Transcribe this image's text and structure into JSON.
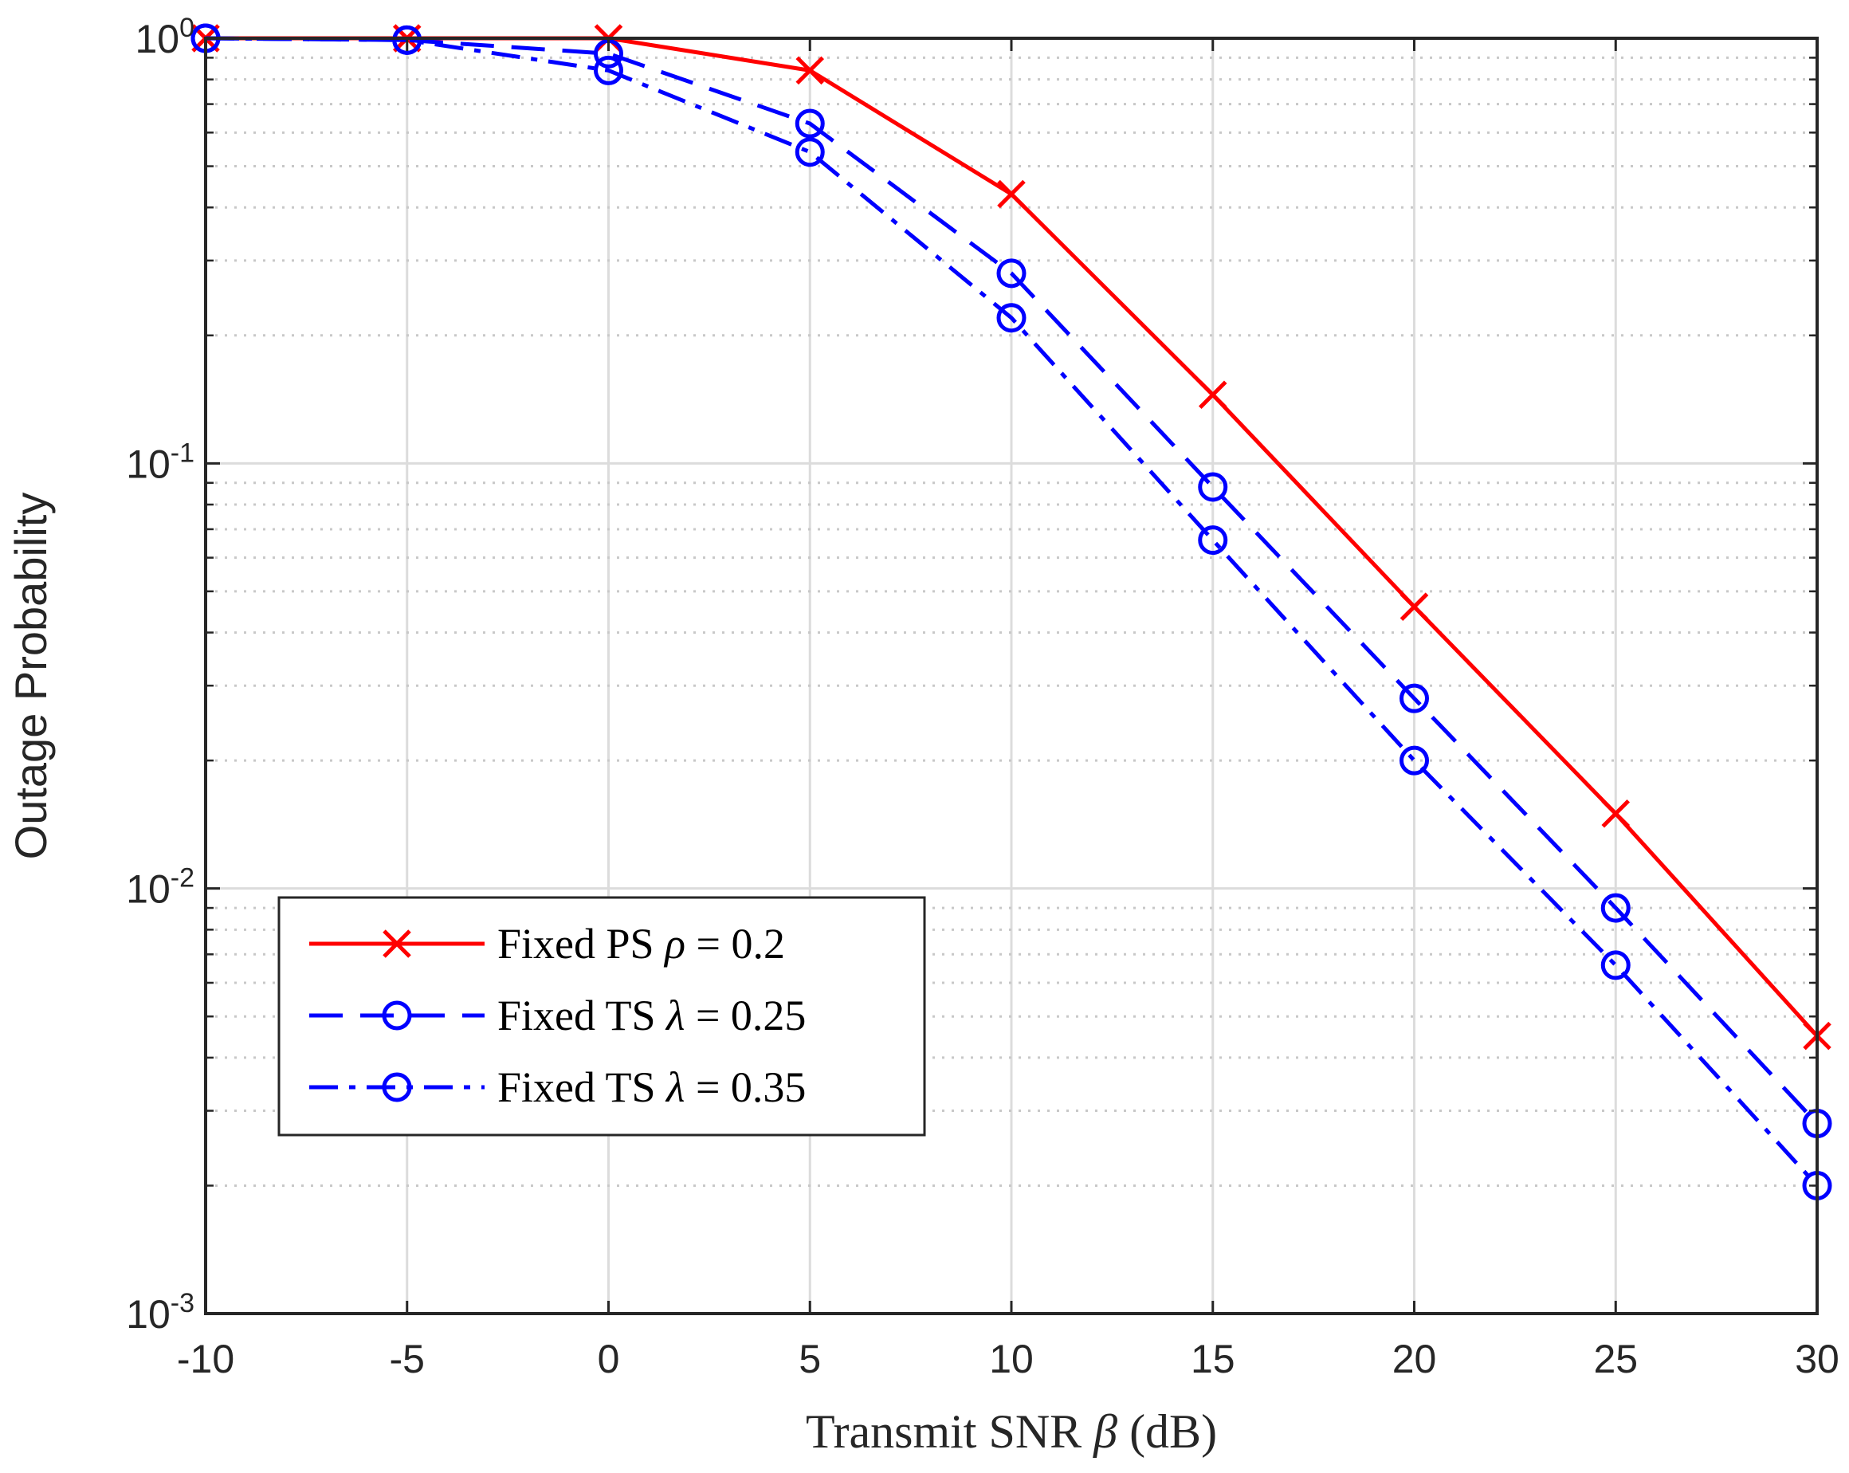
{
  "chart_data": {
    "type": "line",
    "xlabel": {
      "prefix": "Transmit SNR ",
      "symbol": "β",
      "suffix": " (dB)"
    },
    "ylabel": "Outage Probability",
    "x_ticks": [
      "-10",
      "-5",
      "0",
      "5",
      "10",
      "15",
      "20",
      "25",
      "30"
    ],
    "y_ticks": [
      {
        "base": "10",
        "exp": "-3"
      },
      {
        "base": "10",
        "exp": "-2"
      },
      {
        "base": "10",
        "exp": "-1"
      },
      {
        "base": "10",
        "exp": "0"
      }
    ],
    "xlim": [
      -10,
      30
    ],
    "ylim": [
      0.001,
      1
    ],
    "yscale": "log",
    "grid": true,
    "legend_position": "bottom-left",
    "x": [
      -10,
      -5,
      0,
      5,
      10,
      15,
      20,
      25,
      30
    ],
    "series": [
      {
        "name": "Fixed PS",
        "legend_symbol": "ρ",
        "legend_value": " = 0.2",
        "color": "#ff0000",
        "line_style": "solid",
        "marker": "x",
        "values": [
          1.0,
          1.0,
          1.0,
          0.84,
          0.43,
          0.145,
          0.046,
          0.015,
          0.0045
        ]
      },
      {
        "name": "Fixed TS",
        "legend_symbol": "λ",
        "legend_value": " = 0.25",
        "color": "#0000ff",
        "line_style": "dashed",
        "marker": "o",
        "values": [
          1.0,
          0.99,
          0.92,
          0.63,
          0.28,
          0.088,
          0.028,
          0.009,
          0.0028
        ]
      },
      {
        "name": "Fixed TS",
        "legend_symbol": "λ",
        "legend_value": " = 0.35",
        "color": "#0000ff",
        "line_style": "dashdot",
        "marker": "o",
        "values": [
          1.0,
          0.99,
          0.84,
          0.54,
          0.22,
          0.066,
          0.02,
          0.0066,
          0.002
        ]
      }
    ]
  }
}
